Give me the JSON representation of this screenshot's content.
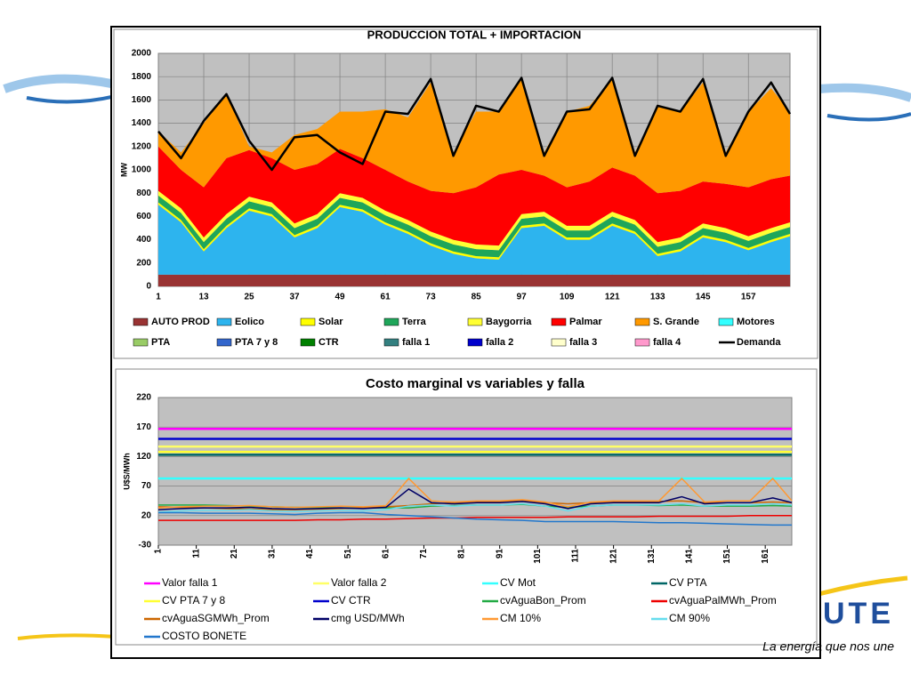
{
  "logo_text": "UTE",
  "slogan": "La energía que nos une",
  "chart_data": [
    {
      "type": "area",
      "stacked": true,
      "title": "PRODUCCION TOTAL + IMPORTACION",
      "y_label": "MW",
      "grid": true,
      "xlim": [
        1,
        168
      ],
      "xticks": [
        1,
        13,
        25,
        37,
        49,
        61,
        73,
        85,
        97,
        109,
        121,
        133,
        145,
        157
      ],
      "ylim": [
        0,
        2000
      ],
      "yticks": [
        0,
        200,
        400,
        600,
        800,
        1000,
        1200,
        1400,
        1600,
        1800,
        2000
      ],
      "x": [
        1,
        7,
        13,
        19,
        25,
        31,
        37,
        43,
        49,
        55,
        61,
        67,
        73,
        79,
        85,
        91,
        97,
        103,
        109,
        115,
        121,
        127,
        133,
        139,
        145,
        151,
        157,
        163,
        168
      ],
      "series": [
        {
          "name": "AUTO PROD",
          "color": "#993333",
          "values": [
            100,
            100,
            100,
            100,
            100,
            100,
            100,
            100,
            100,
            100,
            100,
            100,
            100,
            100,
            100,
            100,
            100,
            100,
            100,
            100,
            100,
            100,
            100,
            100,
            100,
            100,
            100,
            100,
            100
          ]
        },
        {
          "name": "Eolico",
          "color": "#2db4ee",
          "values": [
            600,
            450,
            200,
            400,
            550,
            500,
            320,
            400,
            580,
            540,
            430,
            350,
            250,
            180,
            140,
            130,
            400,
            420,
            300,
            300,
            420,
            350,
            160,
            200,
            320,
            280,
            210,
            280,
            330
          ]
        },
        {
          "name": "Solar",
          "color": "#ffff00",
          "values": [
            20,
            20,
            20,
            20,
            20,
            20,
            20,
            20,
            20,
            20,
            20,
            20,
            20,
            20,
            20,
            20,
            20,
            20,
            20,
            20,
            20,
            20,
            20,
            20,
            20,
            20,
            20,
            20,
            20
          ]
        },
        {
          "name": "Terra",
          "color": "#1fa65a",
          "values": [
            60,
            60,
            60,
            60,
            60,
            60,
            60,
            60,
            60,
            60,
            60,
            60,
            60,
            60,
            60,
            60,
            60,
            60,
            60,
            60,
            60,
            60,
            60,
            60,
            60,
            60,
            60,
            60,
            60
          ]
        },
        {
          "name": "Baygorria",
          "color": "#ffff33",
          "values": [
            40,
            40,
            40,
            40,
            40,
            40,
            40,
            40,
            40,
            40,
            40,
            40,
            40,
            40,
            40,
            40,
            40,
            40,
            40,
            40,
            40,
            40,
            40,
            40,
            40,
            40,
            40,
            40,
            40
          ]
        },
        {
          "name": "Palmar",
          "color": "#ff0000",
          "values": [
            380,
            330,
            430,
            480,
            400,
            380,
            460,
            430,
            380,
            340,
            350,
            330,
            350,
            400,
            490,
            610,
            380,
            310,
            330,
            380,
            380,
            380,
            420,
            400,
            360,
            380,
            420,
            420,
            400
          ]
        },
        {
          "name": "S. Grande",
          "color": "#ff9900",
          "values": [
            130,
            150,
            550,
            550,
            30,
            50,
            300,
            300,
            320,
            400,
            520,
            550,
            930,
            350,
            650,
            540,
            780,
            200,
            650,
            650,
            760,
            200,
            750,
            680,
            850,
            270,
            650,
            780,
            550
          ]
        },
        {
          "name": "Motores",
          "color": "#33ffff",
          "values": [
            0,
            0,
            0,
            0,
            0,
            0,
            0,
            0,
            0,
            0,
            0,
            0,
            0,
            0,
            0,
            0,
            0,
            0,
            0,
            0,
            0,
            0,
            0,
            0,
            0,
            0,
            0,
            0,
            0
          ]
        },
        {
          "name": "PTA",
          "color": "#99cc66",
          "values": [
            0,
            0,
            0,
            0,
            0,
            0,
            0,
            0,
            0,
            0,
            0,
            0,
            0,
            0,
            0,
            0,
            0,
            0,
            0,
            0,
            0,
            0,
            0,
            0,
            0,
            0,
            0,
            0,
            0
          ]
        },
        {
          "name": "PTA 7 y 8",
          "color": "#3366cc",
          "values": [
            0,
            0,
            0,
            0,
            0,
            0,
            0,
            0,
            0,
            0,
            0,
            0,
            0,
            0,
            0,
            0,
            0,
            0,
            0,
            0,
            0,
            0,
            0,
            0,
            0,
            0,
            0,
            0,
            0
          ]
        },
        {
          "name": "CTR",
          "color": "#008000",
          "values": [
            0,
            0,
            0,
            0,
            0,
            0,
            0,
            0,
            0,
            0,
            0,
            0,
            0,
            0,
            0,
            0,
            0,
            0,
            0,
            0,
            0,
            0,
            0,
            0,
            0,
            0,
            0,
            0,
            0
          ]
        },
        {
          "name": "falla 1",
          "color": "#338080",
          "values": [
            0,
            0,
            0,
            0,
            0,
            0,
            0,
            0,
            0,
            0,
            0,
            0,
            0,
            0,
            0,
            0,
            0,
            0,
            0,
            0,
            0,
            0,
            0,
            0,
            0,
            0,
            0,
            0,
            0
          ]
        },
        {
          "name": "falla 2",
          "color": "#0000cc",
          "values": [
            0,
            0,
            0,
            0,
            0,
            0,
            0,
            0,
            0,
            0,
            0,
            0,
            0,
            0,
            0,
            0,
            0,
            0,
            0,
            0,
            0,
            0,
            0,
            0,
            0,
            0,
            0,
            0,
            0
          ]
        },
        {
          "name": "falla 3",
          "color": "#ffffcc",
          "values": [
            0,
            0,
            0,
            0,
            0,
            0,
            0,
            0,
            0,
            0,
            0,
            0,
            0,
            0,
            0,
            0,
            0,
            0,
            0,
            0,
            0,
            0,
            0,
            0,
            0,
            0,
            0,
            0,
            0
          ]
        },
        {
          "name": "falla 4",
          "color": "#ff99cc",
          "values": [
            0,
            0,
            0,
            0,
            0,
            0,
            0,
            0,
            0,
            0,
            0,
            0,
            0,
            0,
            0,
            0,
            0,
            0,
            0,
            0,
            0,
            0,
            0,
            0,
            0,
            0,
            0,
            0,
            0
          ]
        },
        {
          "name": "Demanda",
          "type": "line",
          "color": "#000000",
          "values": [
            1330,
            1100,
            1420,
            1650,
            1250,
            1000,
            1280,
            1300,
            1150,
            1050,
            1500,
            1480,
            1780,
            1120,
            1550,
            1500,
            1790,
            1120,
            1500,
            1520,
            1790,
            1120,
            1550,
            1500,
            1780,
            1120,
            1500,
            1750,
            1480
          ]
        }
      ]
    },
    {
      "type": "line",
      "title": "Costo marginal  vs variables y falla",
      "y_label": "U$S/MWh",
      "grid": true,
      "xlim": [
        1,
        168
      ],
      "xticks": [
        1,
        11,
        21,
        31,
        41,
        51,
        61,
        71,
        81,
        91,
        101,
        111,
        121,
        131,
        141,
        151,
        161
      ],
      "ylim": [
        -30,
        220
      ],
      "yticks": [
        -30,
        20,
        70,
        120,
        170,
        220
      ],
      "x": [
        1,
        7,
        13,
        19,
        25,
        31,
        37,
        43,
        49,
        55,
        61,
        67,
        73,
        79,
        85,
        91,
        97,
        103,
        109,
        115,
        121,
        127,
        133,
        139,
        145,
        151,
        157,
        163,
        168
      ],
      "series": [
        {
          "name": "Valor falla 1",
          "color": "#ff00ff",
          "values": [
            167,
            167,
            167,
            167,
            167,
            167,
            167,
            167,
            167,
            167,
            167,
            167,
            167,
            167,
            167,
            167,
            167,
            167,
            167,
            167,
            167,
            167,
            167,
            167,
            167,
            167,
            167,
            167,
            167
          ]
        },
        {
          "name": "Valor falla 2",
          "color": "#ffff66",
          "values": [
            137,
            137,
            137,
            137,
            137,
            137,
            137,
            137,
            137,
            137,
            137,
            137,
            137,
            137,
            137,
            137,
            137,
            137,
            137,
            137,
            137,
            137,
            137,
            137,
            137,
            137,
            137,
            137,
            137
          ]
        },
        {
          "name": "CV Mot",
          "color": "#33ffff",
          "values": [
            83,
            83,
            83,
            83,
            83,
            83,
            83,
            83,
            83,
            83,
            83,
            83,
            83,
            83,
            83,
            83,
            83,
            83,
            83,
            83,
            83,
            83,
            83,
            83,
            83,
            83,
            83,
            83,
            83
          ]
        },
        {
          "name": "CV PTA",
          "color": "#006666",
          "values": [
            123,
            123,
            123,
            123,
            123,
            123,
            123,
            123,
            123,
            123,
            123,
            123,
            123,
            123,
            123,
            123,
            123,
            123,
            123,
            123,
            123,
            123,
            123,
            123,
            123,
            123,
            123,
            123,
            123
          ]
        },
        {
          "name": "CV PTA 7 y 8",
          "color": "#ffff33",
          "values": [
            128,
            128,
            128,
            128,
            128,
            128,
            128,
            128,
            128,
            128,
            128,
            128,
            128,
            128,
            128,
            128,
            128,
            128,
            128,
            128,
            128,
            128,
            128,
            128,
            128,
            128,
            128,
            128,
            128
          ]
        },
        {
          "name": "CV CTR",
          "color": "#0000cc",
          "values": [
            150,
            150,
            150,
            150,
            150,
            150,
            150,
            150,
            150,
            150,
            150,
            150,
            150,
            150,
            150,
            150,
            150,
            150,
            150,
            150,
            150,
            150,
            150,
            150,
            150,
            150,
            150,
            150,
            150
          ]
        },
        {
          "name": "cvAguaBon_Prom",
          "color": "#22aa44",
          "values": [
            38,
            38,
            38,
            37,
            36,
            35,
            34,
            34,
            33,
            33,
            33,
            33,
            36,
            37,
            38,
            38,
            39,
            36,
            34,
            36,
            38,
            38,
            37,
            38,
            36,
            36,
            36,
            37,
            36
          ]
        },
        {
          "name": "cvAguaPalMWh_Prom",
          "color": "#ee0000",
          "values": [
            12,
            12,
            12,
            12,
            12,
            12,
            12,
            13,
            13,
            14,
            14,
            15,
            16,
            16,
            17,
            17,
            17,
            17,
            18,
            18,
            18,
            18,
            19,
            19,
            19,
            19,
            20,
            20,
            20
          ]
        },
        {
          "name": "cvAguaSGMWh_Prom",
          "color": "#cc6600",
          "values": [
            35,
            34,
            33,
            32,
            31,
            30,
            30,
            31,
            32,
            33,
            35,
            37,
            40,
            42,
            44,
            44,
            45,
            42,
            40,
            42,
            44,
            44,
            44,
            45,
            42,
            42,
            42,
            43,
            42
          ]
        },
        {
          "name": "cmg USD/MWh",
          "color": "#000066",
          "values": [
            30,
            32,
            33,
            33,
            34,
            32,
            31,
            32,
            33,
            32,
            34,
            65,
            42,
            40,
            42,
            42,
            44,
            40,
            32,
            40,
            42,
            42,
            42,
            52,
            40,
            42,
            42,
            50,
            42
          ]
        },
        {
          "name": "CM 10%",
          "color": "#ff9933",
          "values": [
            33,
            35,
            36,
            36,
            37,
            35,
            34,
            35,
            36,
            35,
            37,
            83,
            45,
            43,
            45,
            45,
            47,
            43,
            35,
            43,
            45,
            45,
            45,
            83,
            43,
            45,
            45,
            83,
            45
          ]
        },
        {
          "name": "CM 90%",
          "color": "#66ddee",
          "values": [
            26,
            28,
            29,
            29,
            30,
            28,
            27,
            28,
            29,
            28,
            30,
            36,
            38,
            36,
            38,
            38,
            40,
            36,
            28,
            36,
            38,
            38,
            38,
            40,
            36,
            38,
            38,
            40,
            38
          ]
        },
        {
          "name": "COSTO BONETE",
          "color": "#2277cc",
          "values": [
            25,
            25,
            24,
            24,
            24,
            23,
            22,
            24,
            25,
            25,
            22,
            20,
            18,
            16,
            14,
            13,
            12,
            10,
            10,
            10,
            10,
            9,
            8,
            8,
            7,
            6,
            5,
            4,
            4
          ]
        }
      ]
    }
  ]
}
